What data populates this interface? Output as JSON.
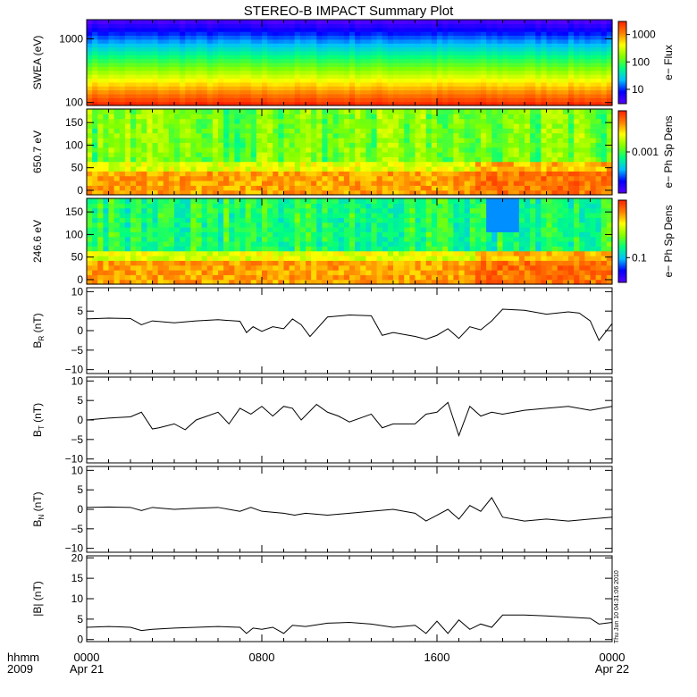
{
  "title": "STEREO-B IMPACT Summary Plot",
  "footer": {
    "unit_label": "hhmm",
    "year": "2009",
    "x_ticks": [
      "0000",
      "0800",
      "1600",
      "0000"
    ],
    "date_start": "Apr 21",
    "date_end": "Apr 22",
    "timestamp": "Thu Jun 10 04:31:06 2010"
  },
  "colors": {
    "spectrogram_scale": [
      "#5a00ff",
      "#0000ff",
      "#00bfff",
      "#00ff80",
      "#80ff00",
      "#ffff00",
      "#ff8000",
      "#ff2000"
    ],
    "line": "#000000"
  },
  "chart_data": [
    {
      "type": "heatmap",
      "name": "swea",
      "ylabel": "SWEA (eV)",
      "y_scale": "log",
      "ylim": [
        90,
        2000
      ],
      "y_ticks": [
        100,
        1000
      ],
      "y_tick_labels": [
        "100",
        "1000"
      ],
      "colorbar_label": "e− Flux",
      "colorbar_scale": "log",
      "colorbar_range": [
        3,
        3000
      ],
      "colorbar_ticks": [
        10,
        100,
        1000
      ],
      "colorbar_tick_labels": [
        "10",
        "100",
        "1000"
      ]
    },
    {
      "type": "heatmap",
      "name": "pad-650",
      "ylabel": "650.7 eV",
      "ylim": [
        -10,
        180
      ],
      "y_ticks": [
        0,
        50,
        100,
        150
      ],
      "y_tick_labels": [
        "0",
        "50",
        "100",
        "150"
      ],
      "colorbar_label": "e− Ph Sp Dens",
      "colorbar_scale": "log",
      "colorbar_range": [
        0.0002,
        0.005
      ],
      "colorbar_ticks": [
        0.001
      ],
      "colorbar_tick_labels": [
        "0.001"
      ]
    },
    {
      "type": "heatmap",
      "name": "pad-246",
      "ylabel": "246.6 eV",
      "ylim": [
        -10,
        180
      ],
      "y_ticks": [
        0,
        50,
        100,
        150
      ],
      "y_tick_labels": [
        "0",
        "50",
        "100",
        "150"
      ],
      "colorbar_label": "e− Ph Sp Dens",
      "colorbar_scale": "log",
      "colorbar_range": [
        0.05,
        0.5
      ],
      "colorbar_ticks": [
        0.1
      ],
      "colorbar_tick_labels": [
        "0.1"
      ]
    },
    {
      "type": "line",
      "name": "br",
      "ylabel": "B",
      "ylabel_sub": "R",
      "ylabel_unit": " (nT)",
      "ylim": [
        -11,
        11
      ],
      "y_ticks": [
        -10,
        -5,
        0,
        5,
        10
      ],
      "y_tick_labels": [
        "−10",
        "−5",
        "0",
        "5",
        "10"
      ],
      "x": [
        0,
        1,
        2,
        2.5,
        3,
        4,
        5,
        6,
        7,
        7.3,
        7.6,
        8,
        8.5,
        9,
        9.4,
        9.8,
        10.2,
        11,
        12,
        13,
        13.5,
        14,
        15,
        15.5,
        16,
        16.5,
        17,
        17.5,
        18,
        18.5,
        19,
        20,
        21,
        22,
        22.5,
        23,
        23.4,
        24
      ],
      "values": [
        3,
        3.2,
        3.1,
        1.5,
        2.5,
        2,
        2.5,
        2.8,
        2.4,
        -0.5,
        1,
        -0.2,
        1,
        0.5,
        3,
        1.5,
        -1.5,
        3.5,
        4,
        3.8,
        -1.2,
        -0.5,
        -1.5,
        -2.2,
        -1.2,
        0.5,
        -2,
        1,
        0.2,
        2.5,
        5.5,
        5.2,
        4.2,
        4.8,
        4.5,
        2.5,
        -2.5,
        1.8
      ]
    },
    {
      "type": "line",
      "name": "bt",
      "ylabel": "B",
      "ylabel_sub": "T",
      "ylabel_unit": " (nT)",
      "ylim": [
        -11,
        11
      ],
      "y_ticks": [
        -10,
        -5,
        0,
        5,
        10
      ],
      "y_tick_labels": [
        "−10",
        "−5",
        "0",
        "5",
        "10"
      ],
      "x": [
        0,
        1,
        2,
        2.5,
        3,
        3.3,
        4,
        4.5,
        5,
        6,
        6.5,
        7,
        7.5,
        8,
        8.5,
        9,
        9.4,
        9.8,
        10.5,
        11,
        11.5,
        12,
        13,
        13.5,
        14,
        15,
        15.5,
        16,
        16.5,
        17,
        17.5,
        18,
        18.5,
        19,
        20,
        21,
        22,
        23,
        24
      ],
      "values": [
        0,
        0.5,
        0.8,
        2,
        -2.3,
        -2,
        -1,
        -2.5,
        0,
        2,
        -1,
        3,
        1.5,
        3.5,
        1,
        3.5,
        3,
        0,
        4,
        2,
        1,
        -0.5,
        1.5,
        -2,
        -1,
        -1,
        1.5,
        2,
        4.5,
        -4,
        3.5,
        1,
        2,
        1.5,
        2.5,
        3,
        3.5,
        2.5,
        3.5
      ]
    },
    {
      "type": "line",
      "name": "bn",
      "ylabel": "B",
      "ylabel_sub": "N",
      "ylabel_unit": " (nT)",
      "ylim": [
        -11,
        11
      ],
      "y_ticks": [
        -10,
        -5,
        0,
        5,
        10
      ],
      "y_tick_labels": [
        "−10",
        "−5",
        "0",
        "5",
        "10"
      ],
      "x": [
        0,
        1,
        2,
        2.5,
        3,
        4,
        5,
        6,
        7,
        7.5,
        8,
        9,
        9.5,
        10,
        11,
        12,
        13,
        14,
        15,
        15.5,
        16,
        16.5,
        17,
        17.5,
        18,
        18.5,
        19,
        20,
        21,
        22,
        23,
        24
      ],
      "values": [
        0.5,
        0.6,
        0.5,
        -0.3,
        0.5,
        0,
        0.3,
        0.5,
        -0.5,
        0.5,
        -0.5,
        -1,
        -1.5,
        -1,
        -1.5,
        -1,
        -0.5,
        0,
        -1,
        -3,
        -1.5,
        0,
        -2.5,
        1,
        -0.5,
        3,
        -2,
        -3,
        -2.5,
        -3,
        -2.5,
        -2
      ]
    },
    {
      "type": "line",
      "name": "bmag",
      "ylabel": "|B| (nT)",
      "ylim": [
        -0.5,
        20.5
      ],
      "y_ticks": [
        0,
        5,
        10,
        15,
        20
      ],
      "y_tick_labels": [
        "0",
        "5",
        "10",
        "15",
        "20"
      ],
      "x": [
        0,
        1,
        2,
        2.5,
        3,
        4,
        5,
        6,
        7,
        7.3,
        7.6,
        8,
        8.5,
        9,
        9.4,
        10,
        11,
        12,
        13,
        14,
        15,
        15.5,
        16,
        16.5,
        17,
        17.5,
        18,
        18.5,
        19,
        20,
        21,
        22,
        23,
        23.4,
        24
      ],
      "values": [
        3,
        3.2,
        3,
        2.2,
        2.5,
        2.8,
        3,
        3.2,
        3,
        1.5,
        2.8,
        2.5,
        3,
        1.5,
        3.5,
        3.2,
        4,
        4.2,
        3.8,
        3,
        3.5,
        1.5,
        4.5,
        1.5,
        4.8,
        2.5,
        3.8,
        3,
        6,
        6,
        5.8,
        5.5,
        5.2,
        3.8,
        4.2
      ]
    }
  ]
}
